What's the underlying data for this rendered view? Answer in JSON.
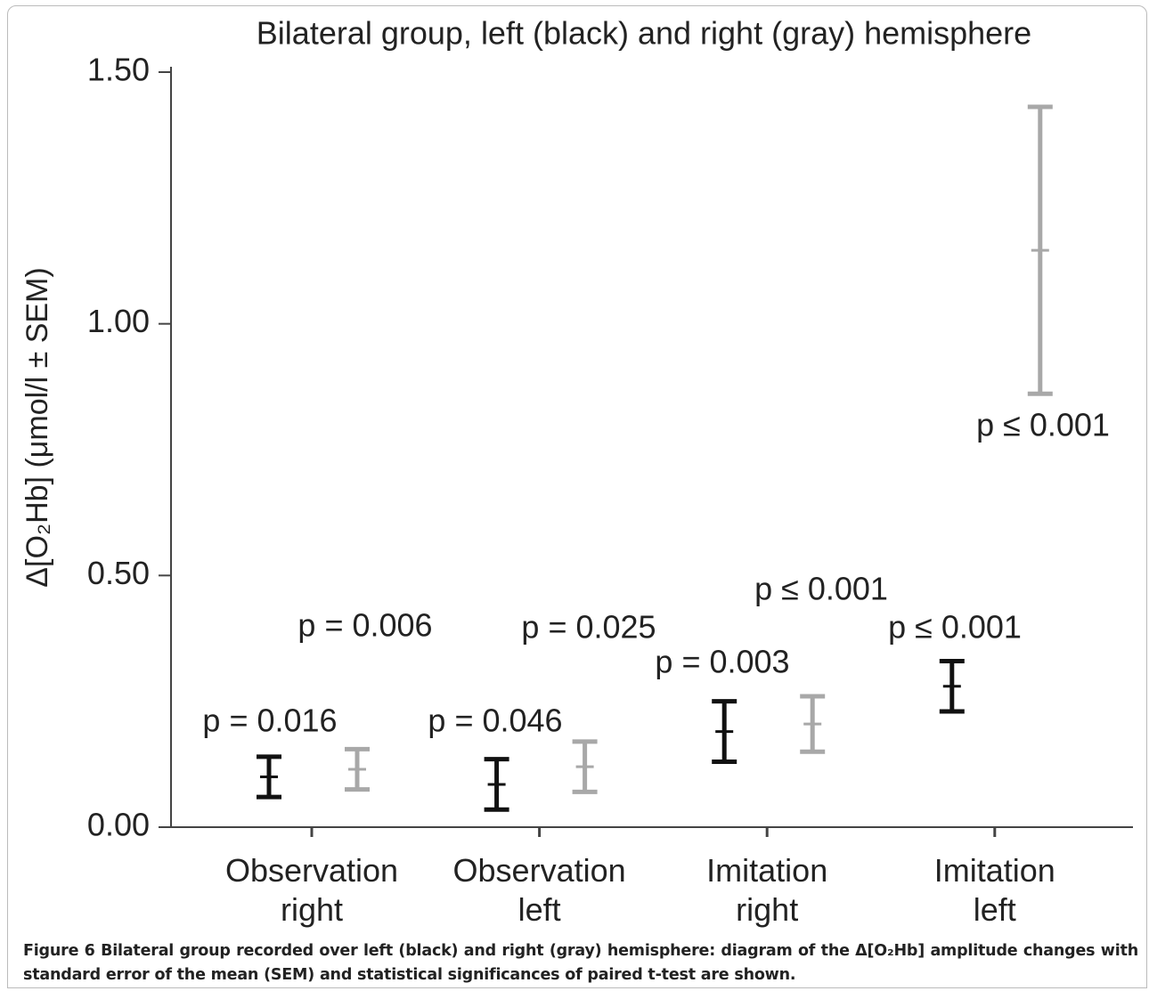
{
  "chart_data": {
    "type": "errorbar",
    "title": "Bilateral group, left (black) and right (gray) hemisphere",
    "ylabel": "Δ[O₂Hb] (μmol/l ± SEM)",
    "categories": [
      "Observation right",
      "Observation left",
      "Imitation right",
      "Imitation left"
    ],
    "series": [
      {
        "color": "#111111",
        "values": [
          0.1,
          0.085,
          0.19,
          0.28
        ],
        "errors": [
          0.04,
          0.05,
          0.06,
          0.05
        ]
      },
      {
        "color": "#a8a8a8",
        "values": [
          0.115,
          0.12,
          0.205,
          1.146
        ],
        "errors": [
          0.04,
          0.05,
          0.055,
          0.285
        ]
      }
    ],
    "ylim": [
      0,
      1.5
    ],
    "yticks": [
      {
        "value": 0,
        "label": "0.00"
      },
      {
        "value": 0.5,
        "label": "0.50"
      },
      {
        "value": 1,
        "label": "1.00"
      },
      {
        "value": 1.5,
        "label": "1.50"
      }
    ],
    "annotations": [
      "p = 0.016",
      "p = 0.006",
      "p = 0.046",
      "p = 0.025",
      "p = 0.003",
      "p ≤ 0.001",
      "p ≤ 0.001",
      "p ≤ 0.001"
    ]
  },
  "caption": {
    "label": "Figure 6",
    "text": "Bilateral group recorded over left (black) and right (gray) hemisphere: diagram of the Δ[O₂Hb] amplitude changes with standard error of the mean (SEM) and statistical significances of paired t-test are shown."
  }
}
